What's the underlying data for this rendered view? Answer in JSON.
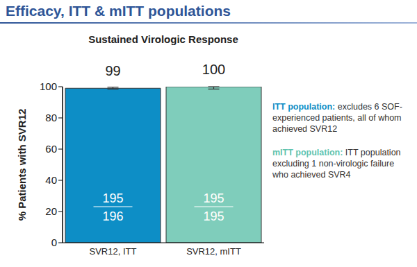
{
  "header": {
    "title": "Efficacy, ITT & mITT populations"
  },
  "chart_data": {
    "type": "bar",
    "title": "Sustained Virologic Response",
    "categories": [
      "SVR12, ITT",
      "SVR12, mITT"
    ],
    "values": [
      99,
      100
    ],
    "colors": [
      "#0d8ec6",
      "#7fcdbb"
    ],
    "error_bars": [
      [
        0.5,
        0.7
      ],
      [
        1.5,
        0
      ]
    ],
    "patients": {
      "responders": [
        195,
        195
      ],
      "totals": [
        196,
        195
      ]
    },
    "y_label": "% Patients with SVR12",
    "ylim": [
      0,
      100
    ],
    "yticks": [
      0,
      20,
      40,
      60,
      80,
      100
    ],
    "grid": false,
    "data_labels": true,
    "annotations": [
      {
        "label": "ITT population:",
        "text": "excludes 6 SOF-experienced patients, all of whom achieved SVR12",
        "color": "#0d8ec6"
      },
      {
        "label": "mITT population:",
        "text": "ITT population excluding 1 non-virologic failure who achieved SVR4",
        "color": "#5fc4b0"
      }
    ]
  }
}
